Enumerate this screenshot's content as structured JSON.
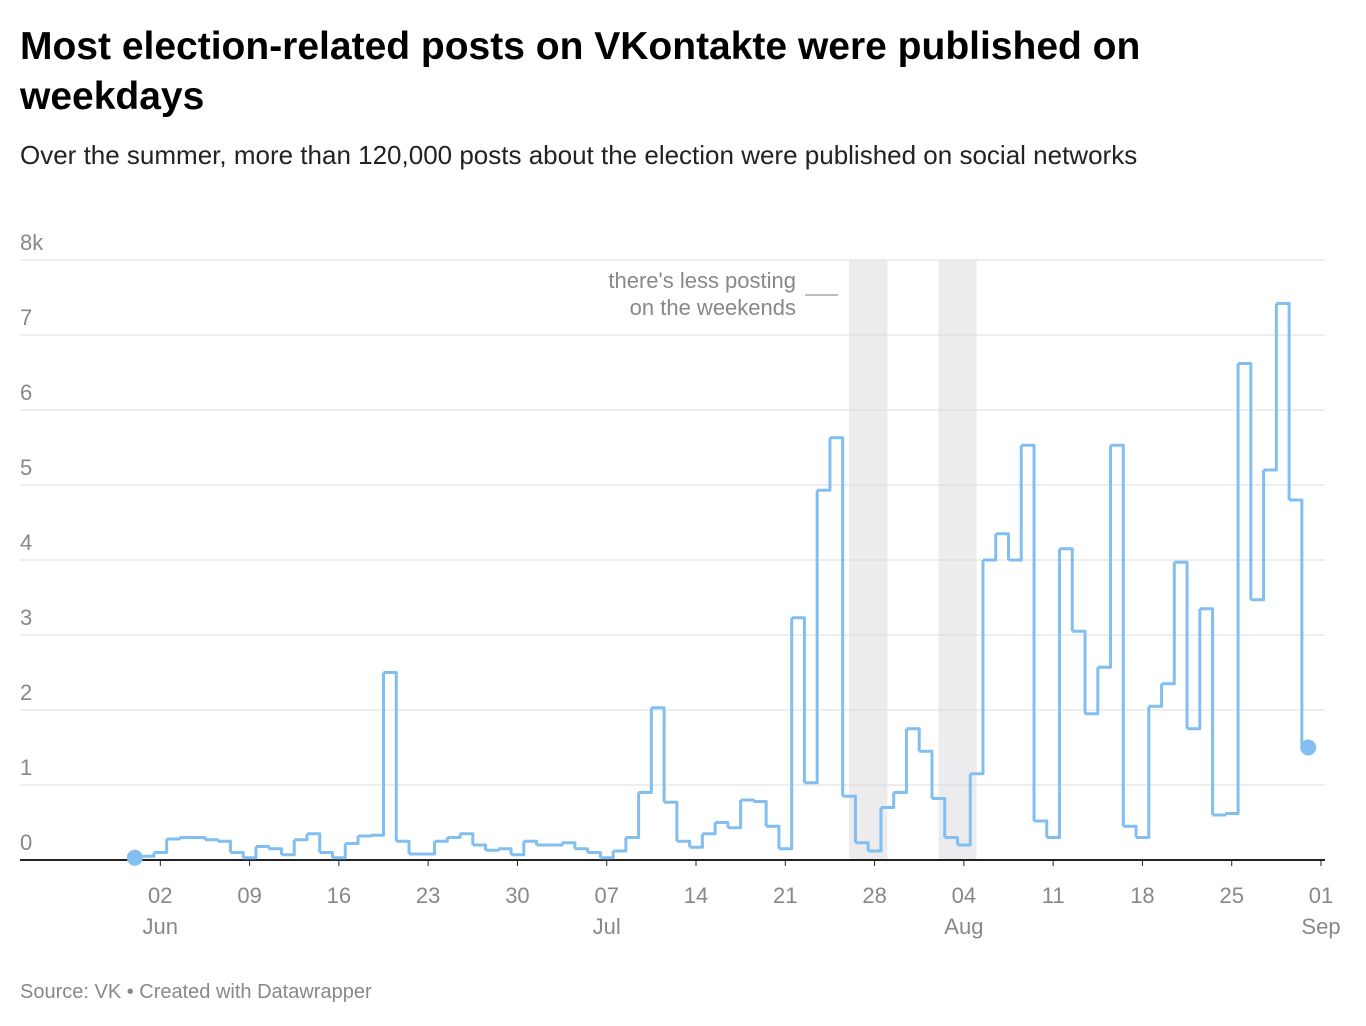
{
  "chart_data": {
    "type": "step-line",
    "title": "Most election-related posts on VKontakte were published on weekdays",
    "subtitle": "Over the summer, more than 120,000 posts about the election were published on social networks",
    "source": "Source: VK • Created with Datawrapper",
    "annotation": [
      "there's less posting",
      "on the weekends"
    ],
    "weekend_bands": [
      [
        "07-26",
        "07-29"
      ],
      [
        "08-02",
        "08-05"
      ]
    ],
    "color": "#82bff0",
    "x": [
      "05-31",
      "06-01",
      "06-02",
      "06-03",
      "06-04",
      "06-05",
      "06-06",
      "06-07",
      "06-08",
      "06-09",
      "06-10",
      "06-11",
      "06-12",
      "06-13",
      "06-14",
      "06-15",
      "06-16",
      "06-17",
      "06-18",
      "06-19",
      "06-20",
      "06-21",
      "06-22",
      "06-23",
      "06-24",
      "06-25",
      "06-26",
      "06-27",
      "06-28",
      "06-29",
      "06-30",
      "07-01",
      "07-02",
      "07-03",
      "07-04",
      "07-05",
      "07-06",
      "07-07",
      "07-08",
      "07-09",
      "07-10",
      "07-11",
      "07-12",
      "07-13",
      "07-14",
      "07-15",
      "07-16",
      "07-17",
      "07-18",
      "07-19",
      "07-20",
      "07-21",
      "07-22",
      "07-23",
      "07-24",
      "07-25",
      "07-26",
      "07-27",
      "07-28",
      "07-29",
      "07-30",
      "07-31",
      "08-01",
      "08-02",
      "08-03",
      "08-04",
      "08-05",
      "08-06",
      "08-07",
      "08-08",
      "08-09",
      "08-10",
      "08-11",
      "08-12",
      "08-13",
      "08-14",
      "08-15",
      "08-16",
      "08-17",
      "08-18",
      "08-19",
      "08-20",
      "08-21",
      "08-22",
      "08-23",
      "08-24",
      "08-25",
      "08-26",
      "08-27",
      "08-28",
      "08-29",
      "08-30",
      "08-31"
    ],
    "values": [
      0.03,
      0.05,
      0.1,
      0.28,
      0.3,
      0.3,
      0.27,
      0.25,
      0.1,
      0.03,
      0.18,
      0.15,
      0.07,
      0.27,
      0.35,
      0.1,
      0.03,
      0.22,
      0.32,
      0.33,
      2.5,
      0.25,
      0.08,
      0.08,
      0.25,
      0.3,
      0.35,
      0.2,
      0.13,
      0.15,
      0.07,
      0.25,
      0.2,
      0.2,
      0.23,
      0.15,
      0.1,
      0.03,
      0.12,
      0.3,
      0.9,
      2.03,
      0.77,
      0.25,
      0.17,
      0.35,
      0.5,
      0.43,
      0.8,
      0.78,
      0.45,
      0.15,
      3.23,
      1.03,
      4.93,
      5.63,
      0.85,
      0.23,
      0.12,
      0.7,
      0.9,
      1.75,
      1.45,
      0.82,
      0.3,
      0.2,
      1.15,
      4.0,
      4.35,
      4.0,
      5.53,
      0.52,
      0.3,
      4.15,
      3.05,
      1.95,
      2.57,
      5.53,
      0.45,
      0.3,
      2.05,
      2.35,
      3.97,
      1.75,
      3.35,
      0.6,
      0.62,
      6.62,
      3.47,
      5.2,
      7.42,
      4.8,
      1.5
    ],
    "xlim": [
      "05-22",
      "09-01"
    ],
    "xticks": [
      {
        "value": "06-02",
        "label": "02",
        "month": "Jun"
      },
      {
        "value": "06-09",
        "label": "09"
      },
      {
        "value": "06-16",
        "label": "16"
      },
      {
        "value": "06-23",
        "label": "23"
      },
      {
        "value": "06-30",
        "label": "30"
      },
      {
        "value": "07-07",
        "label": "07",
        "month": "Jul"
      },
      {
        "value": "07-14",
        "label": "14"
      },
      {
        "value": "07-21",
        "label": "21"
      },
      {
        "value": "07-28",
        "label": "28"
      },
      {
        "value": "08-04",
        "label": "04",
        "month": "Aug"
      },
      {
        "value": "08-11",
        "label": "11"
      },
      {
        "value": "08-18",
        "label": "18"
      },
      {
        "value": "08-25",
        "label": "25"
      },
      {
        "value": "09-01",
        "label": "01",
        "month": "Sep"
      }
    ],
    "ylim": [
      0,
      8
    ],
    "yticks": [
      0,
      1,
      2,
      3,
      4,
      5,
      6,
      7,
      {
        "value": 8,
        "label": "8k"
      }
    ],
    "grid": true
  }
}
